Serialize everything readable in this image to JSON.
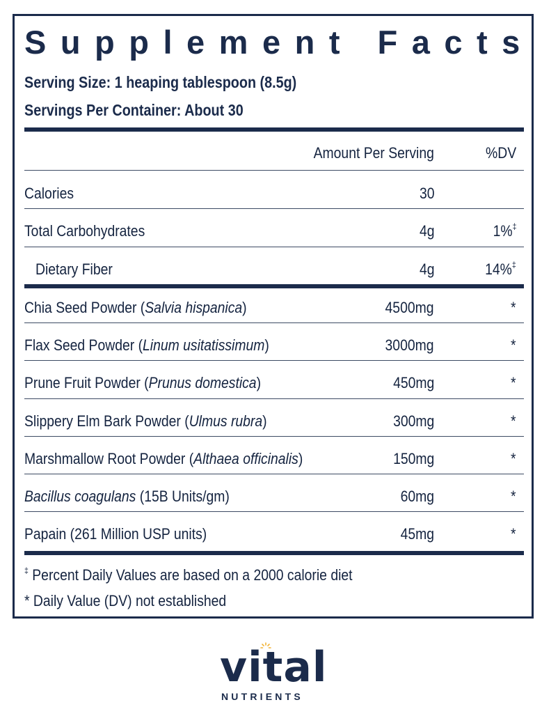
{
  "panel": {
    "title": "Supplement Facts",
    "serving_size": "Serving Size: 1 heaping tablespoon (8.5g)",
    "servings_per_container": "Servings Per Container: About 30",
    "header": {
      "amount": "Amount Per Serving",
      "dv": "%DV"
    },
    "rows": [
      {
        "name": "Calories",
        "amount": "30",
        "dv": ""
      },
      {
        "name": "Total Carbohydrates",
        "amount": "4g",
        "dv": "1%",
        "dv_mark": "‡"
      },
      {
        "name": "Dietary Fiber",
        "amount": "4g",
        "dv": "14%",
        "dv_mark": "‡"
      },
      {
        "name": "Chia Seed Powder (",
        "name_italic": "Salvia hispanica",
        "name_end": ")",
        "amount": "4500mg",
        "dv": "*"
      },
      {
        "name": "Flax Seed Powder (",
        "name_italic": "Linum usitatissimum",
        "name_end": ")",
        "amount": "3000mg",
        "dv": "*"
      },
      {
        "name": "Prune Fruit Powder (",
        "name_italic": "Prunus domestica",
        "name_end": ")",
        "amount": "450mg",
        "dv": "*"
      },
      {
        "name": "Slippery Elm Bark Powder (",
        "name_italic": "Ulmus rubra",
        "name_end": ")",
        "amount": "300mg",
        "dv": "*"
      },
      {
        "name": "Marshmallow Root Powder (",
        "name_italic": "Althaea officinalis",
        "name_end": ")",
        "amount": "150mg",
        "dv": "*"
      },
      {
        "name_italic": "Bacillus coagulans",
        "name_end": " (15B Units/gm)",
        "amount": "60mg",
        "dv": "*"
      },
      {
        "name": "Papain (261 Million USP units)",
        "amount": "45mg",
        "dv": "*"
      }
    ],
    "footnote_1_mark": "‡",
    "footnote_1": " Percent Daily Values are based on a 2000 calorie diet",
    "footnote_2": "* Daily Value (DV) not established"
  },
  "brand": {
    "name": "vital",
    "sub": "NUTRIENTS"
  },
  "colors": {
    "ink": "#1b2b4b",
    "sun": "#f2b233"
  }
}
